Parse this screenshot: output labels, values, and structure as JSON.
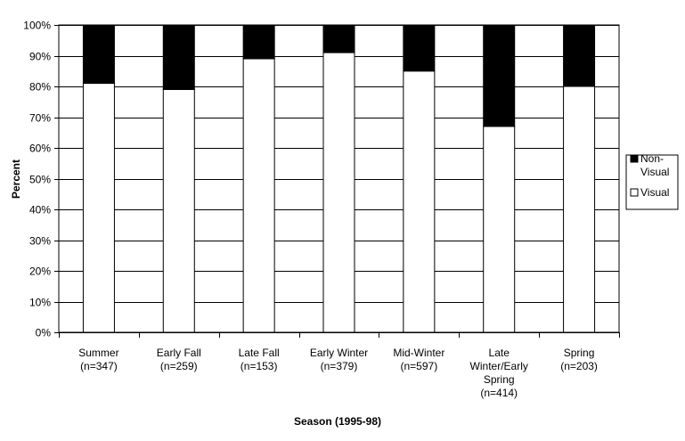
{
  "chart_data": {
    "type": "bar",
    "stacked": true,
    "percent_stacked": true,
    "categories": [
      [
        "Summer",
        "(n=347)"
      ],
      [
        "Early Fall",
        "(n=259)"
      ],
      [
        "Late Fall",
        "(n=153)"
      ],
      [
        "Early Winter",
        "(n=379)"
      ],
      [
        "Mid-Winter",
        "(n=597)"
      ],
      [
        "Late",
        "Winter/Early",
        "Spring",
        "(n=414)"
      ],
      [
        "Spring",
        "(n=203)"
      ]
    ],
    "series": [
      {
        "name": "Visual",
        "values": [
          81,
          79,
          89,
          91,
          85,
          67,
          80
        ],
        "color": "#ffffff"
      },
      {
        "name": "Non-Visual",
        "values": [
          19,
          21,
          11,
          9,
          15,
          33,
          20
        ],
        "color": "#000000"
      }
    ],
    "xlabel": "Season (1995-98)",
    "ylabel": "Percent",
    "ylim": [
      0,
      100
    ],
    "ytick_labels": [
      "0%",
      "10%",
      "20%",
      "30%",
      "40%",
      "50%",
      "60%",
      "70%",
      "80%",
      "90%",
      "100%"
    ],
    "grid": true,
    "legend": {
      "position": "right",
      "entries": [
        {
          "label": [
            "Non-",
            "Visual"
          ],
          "color": "#000000"
        },
        {
          "label": [
            "Visual"
          ],
          "color": "#ffffff"
        }
      ]
    }
  }
}
